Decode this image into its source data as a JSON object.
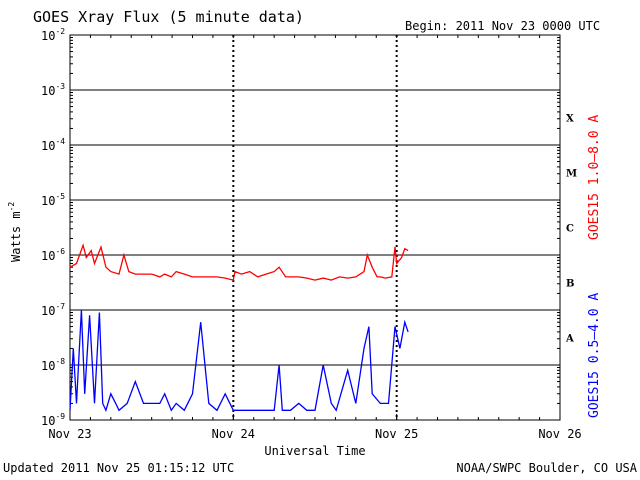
{
  "header": {
    "title": "GOES Xray Flux (5 minute data)",
    "begin": "Begin:  2011 Nov 23 0000 UTC"
  },
  "footer": {
    "updated": "Updated 2011 Nov 25 01:15:12 UTC",
    "credit": "NOAA/SWPC Boulder, CO USA"
  },
  "chart_data": {
    "type": "line",
    "title": "GOES Xray Flux (5 minute data)",
    "xlabel": "Universal Time",
    "ylabel": "Watts m",
    "ylabel_exp": "-2",
    "yscale": "log",
    "ylim": [
      1e-09,
      0.01
    ],
    "xlim_days": [
      0,
      3
    ],
    "x_tick_labels": [
      "Nov 23",
      "Nov 24",
      "Nov 25",
      "Nov 26"
    ],
    "y_tick_mantissa": "10",
    "y_tick_exponents": [
      "-9",
      "-8",
      "-7",
      "-6",
      "-5",
      "-4",
      "-3",
      "-2"
    ],
    "flare_classes": [
      "X",
      "M",
      "C",
      "B",
      "A"
    ],
    "grid": "horizontal at each decade; dotted vertical at day boundaries",
    "colors": {
      "long": "#ff0000",
      "short": "#0000ff",
      "axes": "#000000"
    },
    "series": [
      {
        "name": "GOES15 1.0–8.0 A",
        "color": "#ff0000",
        "x": [
          0.0,
          0.04,
          0.08,
          0.1,
          0.13,
          0.15,
          0.19,
          0.22,
          0.25,
          0.3,
          0.33,
          0.36,
          0.4,
          0.45,
          0.5,
          0.55,
          0.58,
          0.62,
          0.65,
          0.7,
          0.75,
          0.8,
          0.85,
          0.9,
          0.95,
          1.0,
          1.01,
          1.05,
          1.1,
          1.15,
          1.2,
          1.25,
          1.28,
          1.32,
          1.35,
          1.4,
          1.45,
          1.5,
          1.55,
          1.6,
          1.65,
          1.7,
          1.75,
          1.8,
          1.82,
          1.85,
          1.88,
          1.9,
          1.93,
          1.97,
          1.99,
          2.0,
          2.03,
          2.05,
          2.07
        ],
        "y": [
          6e-07,
          7e-07,
          1.5e-06,
          9e-07,
          1.2e-06,
          7e-07,
          1.4e-06,
          6e-07,
          5e-07,
          4.5e-07,
          1e-06,
          5e-07,
          4.5e-07,
          4.5e-07,
          4.5e-07,
          4e-07,
          4.5e-07,
          4e-07,
          5e-07,
          4.5e-07,
          4e-07,
          4e-07,
          4e-07,
          4e-07,
          3.8e-07,
          3.5e-07,
          5e-07,
          4.5e-07,
          5e-07,
          4e-07,
          4.5e-07,
          5e-07,
          6e-07,
          4e-07,
          4e-07,
          4e-07,
          3.8e-07,
          3.5e-07,
          3.8e-07,
          3.5e-07,
          4e-07,
          3.8e-07,
          4e-07,
          5e-07,
          1e-06,
          6e-07,
          4e-07,
          4e-07,
          3.8e-07,
          4e-07,
          1.4e-06,
          7e-07,
          9e-07,
          1.3e-06,
          1.2e-06
        ]
      },
      {
        "name": "GOES15 0.5–4.0 A",
        "color": "#0000ff",
        "x": [
          0.0,
          0.02,
          0.04,
          0.07,
          0.09,
          0.12,
          0.15,
          0.18,
          0.2,
          0.22,
          0.25,
          0.28,
          0.3,
          0.35,
          0.4,
          0.45,
          0.5,
          0.55,
          0.58,
          0.62,
          0.65,
          0.7,
          0.75,
          0.8,
          0.85,
          0.9,
          0.95,
          1.0,
          1.05,
          1.1,
          1.15,
          1.2,
          1.25,
          1.28,
          1.3,
          1.35,
          1.4,
          1.45,
          1.5,
          1.55,
          1.6,
          1.63,
          1.7,
          1.75,
          1.8,
          1.83,
          1.85,
          1.9,
          1.95,
          1.99,
          2.02,
          2.05,
          2.07
        ],
        "y": [
          1.5e-09,
          2e-08,
          2e-09,
          1e-07,
          3e-09,
          8e-08,
          2e-09,
          9e-08,
          2e-09,
          1.5e-09,
          3e-09,
          2e-09,
          1.5e-09,
          2e-09,
          5e-09,
          2e-09,
          2e-09,
          2e-09,
          3e-09,
          1.5e-09,
          2e-09,
          1.5e-09,
          3e-09,
          6e-08,
          2e-09,
          1.5e-09,
          3e-09,
          1.5e-09,
          1.5e-09,
          1.5e-09,
          1.5e-09,
          1.5e-09,
          1.5e-09,
          1e-08,
          1.5e-09,
          1.5e-09,
          2e-09,
          1.5e-09,
          1.5e-09,
          1e-08,
          2e-09,
          1.5e-09,
          8e-09,
          2e-09,
          2e-08,
          5e-08,
          3e-09,
          2e-09,
          2e-09,
          5e-08,
          2e-08,
          6e-08,
          4e-08
        ]
      }
    ]
  }
}
